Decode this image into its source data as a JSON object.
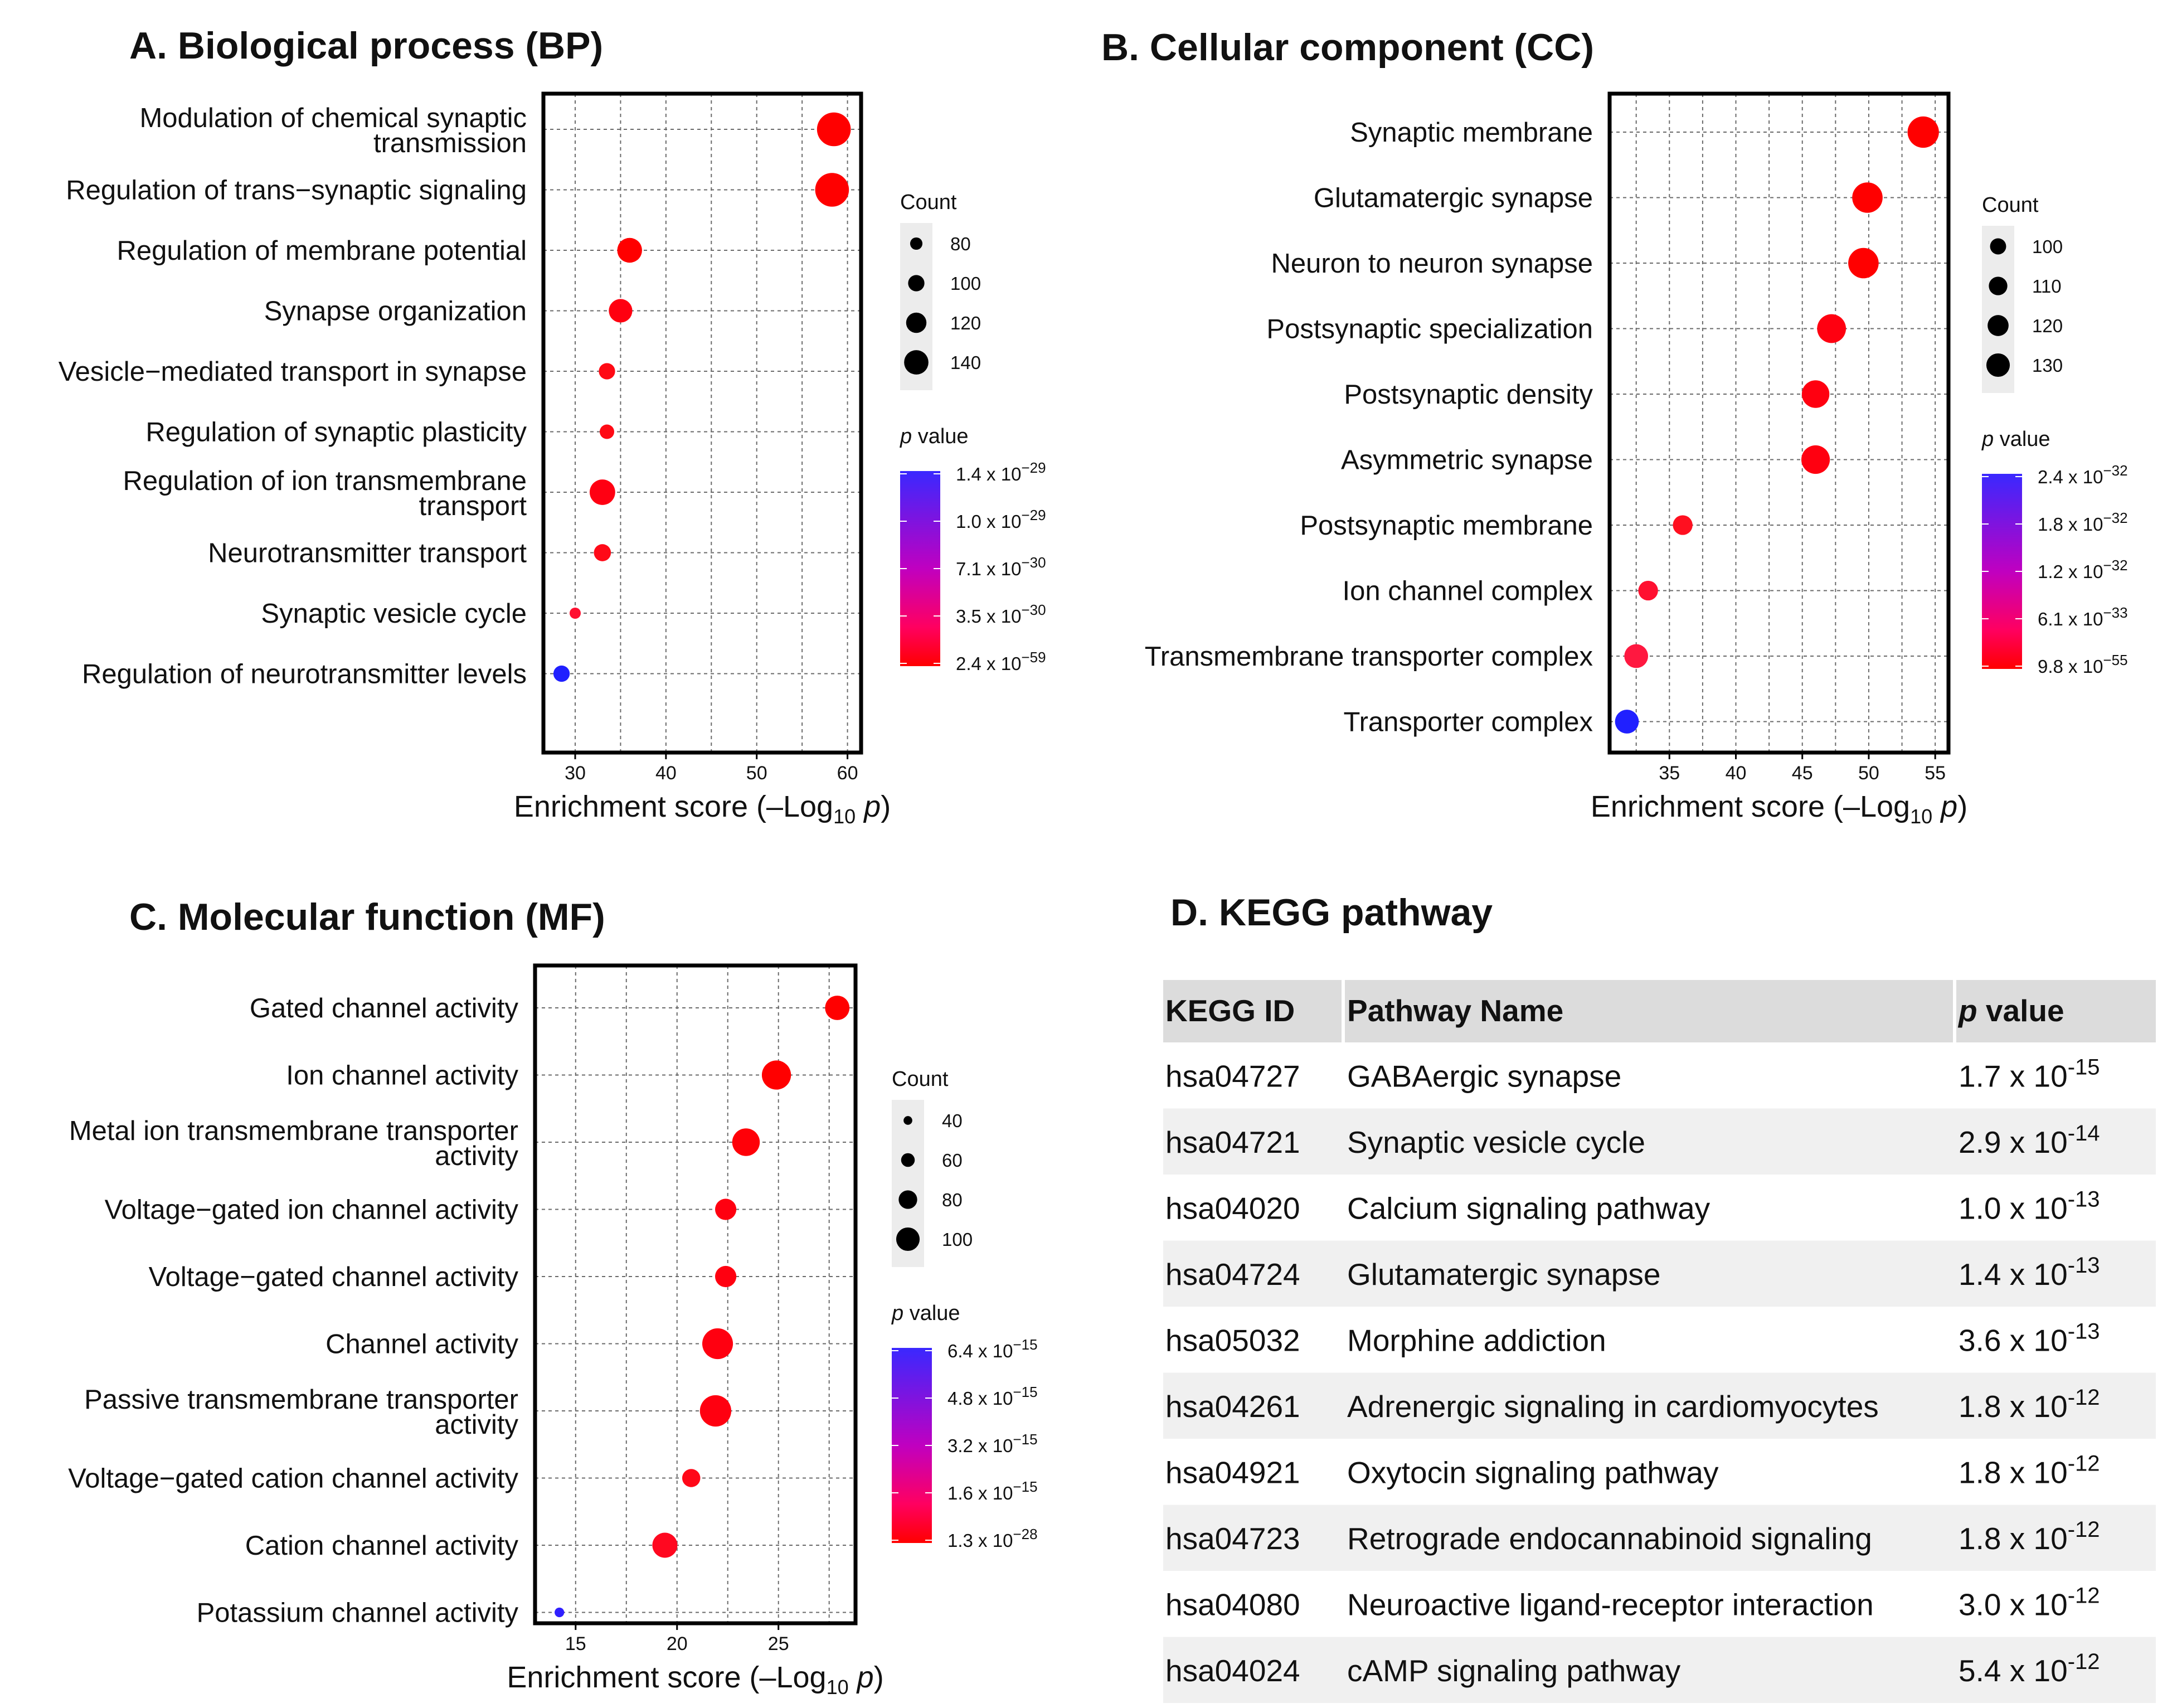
{
  "chart_data": [
    {
      "id": "A",
      "type": "scatter",
      "title": "A. Biological process (BP)",
      "xlabel": "Enrichment score (–Log10 p)",
      "xlabel_parts": {
        "pre": "Enrichment score (–Log",
        "sub": "10",
        "italic": "p",
        "post": ")"
      },
      "xlim": [
        26.5,
        61.5
      ],
      "xticks": [
        30,
        40,
        50,
        60
      ],
      "grid": true,
      "categories": [
        "Modulation of chemical synaptic transmission",
        "Regulation of trans−synaptic signaling",
        "Regulation of membrane potential",
        "Synapse organization",
        "Vesicle−mediated transport in synapse",
        "Regulation of synaptic plasticity",
        "Regulation of ion transmembrane transport",
        "Neurotransmitter transport",
        "Synaptic vesicle cycle",
        "Regulation of neurotransmitter levels"
      ],
      "points": [
        {
          "x": 58.5,
          "count": 150,
          "color": "#ff0000"
        },
        {
          "x": 58.3,
          "count": 150,
          "color": "#ff0000"
        },
        {
          "x": 36.0,
          "count": 115,
          "color": "#ff0000"
        },
        {
          "x": 35.0,
          "count": 110,
          "color": "#ff0010"
        },
        {
          "x": 33.5,
          "count": 82,
          "color": "#ff0a14"
        },
        {
          "x": 33.5,
          "count": 75,
          "color": "#ff0a14"
        },
        {
          "x": 33.0,
          "count": 118,
          "color": "#ff0012"
        },
        {
          "x": 33.0,
          "count": 85,
          "color": "#ff0a18"
        },
        {
          "x": 30.0,
          "count": 62,
          "color": "#ff1030"
        },
        {
          "x": 28.5,
          "count": 82,
          "color": "#2020ff"
        }
      ],
      "count_legend": {
        "title": "Count",
        "values": [
          80,
          100,
          120,
          140
        ]
      },
      "pvalue_legend": {
        "title": "value",
        "ticks": [
          {
            "m": "1.4 x 10",
            "e": "−29"
          },
          {
            "m": "1.0 x 10",
            "e": "−29"
          },
          {
            "m": "7.1 x 10",
            "e": "−30"
          },
          {
            "m": "3.5 x 10",
            "e": "−30"
          },
          {
            "m": "2.4 x 10",
            "e": "−59"
          }
        ]
      }
    },
    {
      "id": "B",
      "type": "scatter",
      "title": "B. Cellular component (CC)",
      "xlabel": "Enrichment score (–Log10 p)",
      "xlabel_parts": {
        "pre": "Enrichment score (–Log",
        "sub": "10",
        "italic": "p",
        "post": ")"
      },
      "xlim": [
        30.5,
        56.0
      ],
      "xticks": [
        35,
        40,
        45,
        50,
        55
      ],
      "grid": true,
      "categories": [
        "Synaptic membrane",
        "Glutamatergic synapse",
        "Neuron to neuron synapse",
        "Postsynaptic specialization",
        "Postsynaptic density",
        "Asymmetric synapse",
        "Postsynaptic membrane",
        "Ion channel complex",
        "Transmembrane transporter complex",
        "Transporter complex"
      ],
      "points": [
        {
          "x": 54.1,
          "count": 134,
          "color": "#ff0000"
        },
        {
          "x": 49.9,
          "count": 131,
          "color": "#ff0000"
        },
        {
          "x": 49.6,
          "count": 131,
          "color": "#ff0000"
        },
        {
          "x": 47.2,
          "count": 126,
          "color": "#ff0010"
        },
        {
          "x": 46.0,
          "count": 122,
          "color": "#ff0010"
        },
        {
          "x": 46.0,
          "count": 125,
          "color": "#ff0010"
        },
        {
          "x": 36.0,
          "count": 97,
          "color": "#ff1020"
        },
        {
          "x": 33.4,
          "count": 97,
          "color": "#ff1030"
        },
        {
          "x": 32.5,
          "count": 110,
          "color": "#ff1840"
        },
        {
          "x": 31.8,
          "count": 110,
          "color": "#2020ff"
        }
      ],
      "count_legend": {
        "title": "Count",
        "values": [
          100,
          110,
          120,
          130
        ]
      },
      "pvalue_legend": {
        "title": "value",
        "ticks": [
          {
            "m": "2.4 x 10",
            "e": "−32"
          },
          {
            "m": "1.8 x 10",
            "e": "−32"
          },
          {
            "m": "1.2 x 10",
            "e": "−32"
          },
          {
            "m": "6.1 x 10",
            "e": "−33"
          },
          {
            "m": "9.8 x 10",
            "e": "−55"
          }
        ]
      }
    },
    {
      "id": "C",
      "type": "scatter",
      "title": "C. Molecular function (MF)",
      "xlabel": "Enrichment score (–Log10 p)",
      "xlabel_parts": {
        "pre": "Enrichment score (–Log",
        "sub": "10",
        "italic": "p",
        "post": ")"
      },
      "xlim": [
        13.0,
        28.8
      ],
      "xticks": [
        15,
        20,
        25
      ],
      "grid": true,
      "categories": [
        "Gated channel activity",
        "Ion channel activity",
        "Metal ion transmembrane transporter activity",
        "Voltage−gated ion channel activity",
        "Voltage−gated channel activity",
        "Channel activity",
        "Passive transmembrane transporter activity",
        "Voltage−gated cation channel activity",
        "Cation channel activity",
        "Potassium channel activity"
      ],
      "points": [
        {
          "x": 27.9,
          "count": 82,
          "color": "#ff0000"
        },
        {
          "x": 24.9,
          "count": 97,
          "color": "#ff0000"
        },
        {
          "x": 23.4,
          "count": 92,
          "color": "#ff0008"
        },
        {
          "x": 22.4,
          "count": 72,
          "color": "#ff0010"
        },
        {
          "x": 22.4,
          "count": 72,
          "color": "#ff0010"
        },
        {
          "x": 22.0,
          "count": 102,
          "color": "#ff0010"
        },
        {
          "x": 21.9,
          "count": 104,
          "color": "#ff0010"
        },
        {
          "x": 20.7,
          "count": 62,
          "color": "#ff0818"
        },
        {
          "x": 19.4,
          "count": 84,
          "color": "#ff0820"
        },
        {
          "x": 14.2,
          "count": 35,
          "color": "#3020ff"
        }
      ],
      "count_legend": {
        "title": "Count",
        "values": [
          40,
          60,
          80,
          100
        ]
      },
      "pvalue_legend": {
        "title": "value",
        "ticks": [
          {
            "m": "6.4 x 10",
            "e": "−15"
          },
          {
            "m": "4.8 x 10",
            "e": "−15"
          },
          {
            "m": "3.2 x 10",
            "e": "−15"
          },
          {
            "m": "1.6 x 10",
            "e": "−15"
          },
          {
            "m": "1.3 x 10",
            "e": "−28"
          }
        ]
      }
    },
    {
      "id": "D",
      "type": "table",
      "title": "D. KEGG pathway",
      "columns": [
        "KEGG ID",
        "Pathway Name",
        "value"
      ],
      "rows": [
        {
          "id": "hsa04727",
          "name": "GABAergic synapse",
          "m": "1.7 x 10",
          "e": "-15"
        },
        {
          "id": "hsa04721",
          "name": "Synaptic vesicle cycle",
          "m": "2.9 x 10",
          "e": "-14"
        },
        {
          "id": "hsa04020",
          "name": "Calcium signaling pathway",
          "m": "1.0 x 10",
          "e": "-13"
        },
        {
          "id": "hsa04724",
          "name": "Glutamatergic synapse",
          "m": "1.4 x 10",
          "e": "-13"
        },
        {
          "id": "hsa05032",
          "name": "Morphine addiction",
          "m": "3.6 x 10",
          "e": "-13"
        },
        {
          "id": "hsa04261",
          "name": "Adrenergic signaling in cardiomyocytes",
          "m": "1.8 x 10",
          "e": "-12"
        },
        {
          "id": "hsa04921",
          "name": "Oxytocin signaling pathway",
          "m": "1.8 x 10",
          "e": "-12"
        },
        {
          "id": "hsa04723",
          "name": "Retrograde endocannabinoid signaling",
          "m": "1.8 x 10",
          "e": "-12"
        },
        {
          "id": "hsa04080",
          "name": "Neuroactive ligand-receptor interaction",
          "m": "3.0 x 10",
          "e": "-12"
        },
        {
          "id": "hsa04024",
          "name": "cAMP signaling pathway",
          "m": "5.4 x 10",
          "e": "-12"
        }
      ]
    }
  ],
  "italic_p": "p"
}
